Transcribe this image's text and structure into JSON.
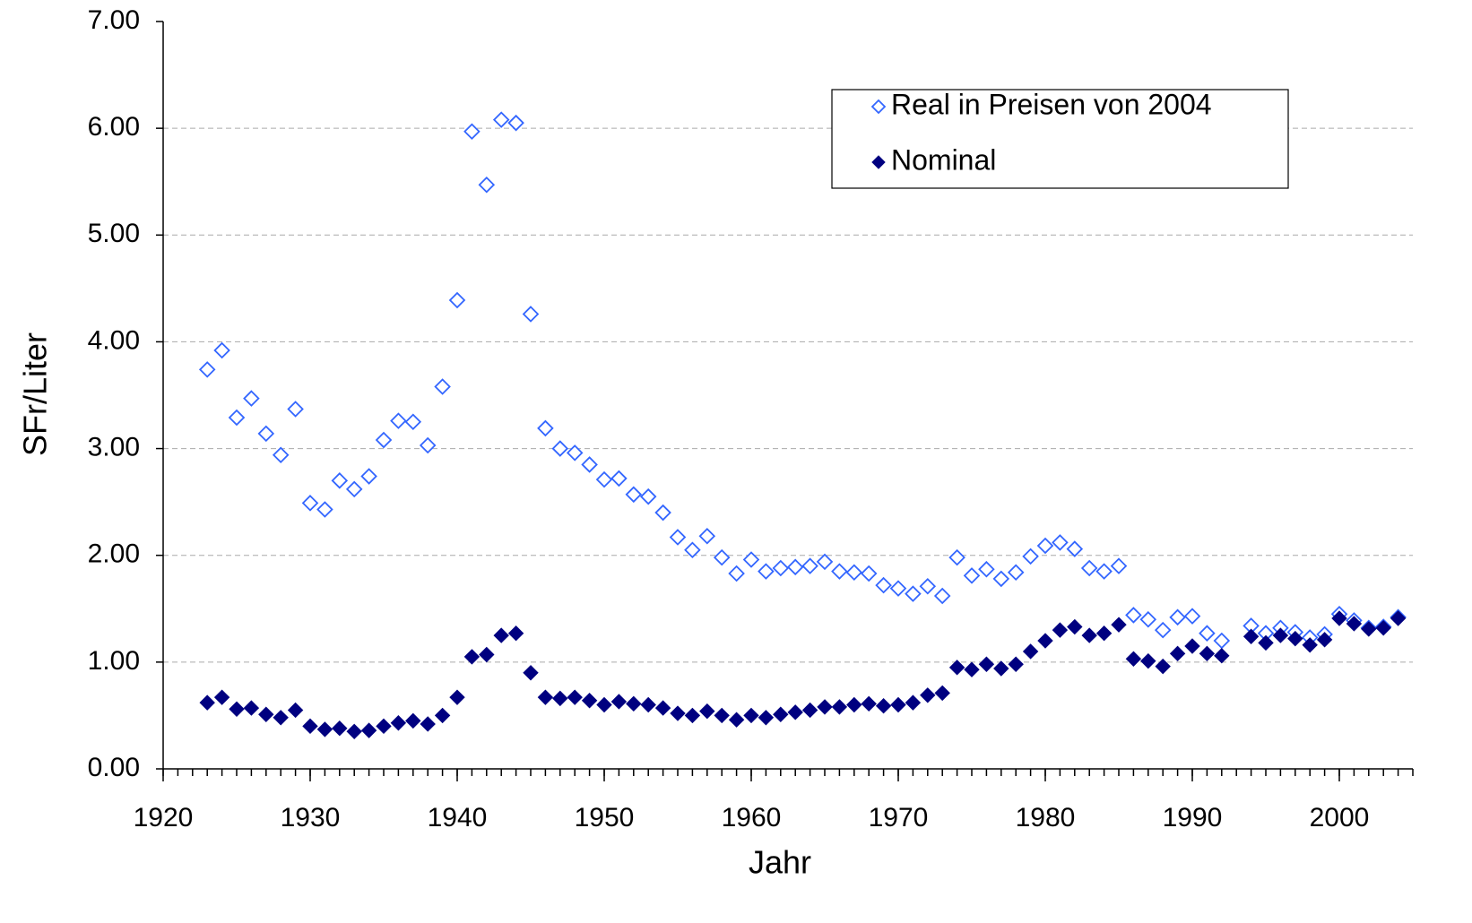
{
  "chart_data": {
    "type": "scatter",
    "x_label": "Jahr",
    "y_label": "SFr/Liter",
    "x": [
      1923,
      1924,
      1925,
      1926,
      1927,
      1928,
      1929,
      1930,
      1931,
      1932,
      1933,
      1934,
      1935,
      1936,
      1937,
      1938,
      1939,
      1940,
      1941,
      1942,
      1943,
      1944,
      1945,
      1946,
      1947,
      1948,
      1949,
      1950,
      1951,
      1952,
      1953,
      1954,
      1955,
      1956,
      1957,
      1958,
      1959,
      1960,
      1961,
      1962,
      1963,
      1964,
      1965,
      1966,
      1967,
      1968,
      1969,
      1970,
      1971,
      1972,
      1973,
      1974,
      1975,
      1976,
      1977,
      1978,
      1979,
      1980,
      1981,
      1982,
      1983,
      1984,
      1985,
      1986,
      1987,
      1988,
      1989,
      1990,
      1991,
      1992,
      1994,
      1995,
      1996,
      1997,
      1998,
      1999,
      2000,
      2001,
      2002,
      2003,
      2004
    ],
    "series": [
      {
        "name": "Real in Preisen von 2004",
        "color": "#3366ff",
        "marker": "hollow-diamond",
        "values": [
          3.74,
          3.92,
          3.29,
          3.47,
          3.14,
          2.94,
          3.37,
          2.49,
          2.43,
          2.7,
          2.62,
          2.74,
          3.08,
          3.26,
          3.25,
          3.03,
          3.58,
          4.39,
          5.97,
          5.47,
          6.08,
          6.05,
          4.26,
          3.19,
          3.0,
          2.96,
          2.85,
          2.71,
          2.72,
          2.57,
          2.55,
          2.4,
          2.17,
          2.05,
          2.18,
          1.98,
          1.83,
          1.96,
          1.85,
          1.88,
          1.89,
          1.9,
          1.94,
          1.85,
          1.84,
          1.83,
          1.72,
          1.69,
          1.64,
          1.71,
          1.62,
          1.98,
          1.81,
          1.87,
          1.78,
          1.84,
          1.99,
          2.09,
          2.12,
          2.06,
          1.88,
          1.85,
          1.9,
          1.44,
          1.4,
          1.3,
          1.42,
          1.43,
          1.27,
          1.2,
          1.34,
          1.27,
          1.32,
          1.28,
          1.23,
          1.26,
          1.45,
          1.39,
          1.32,
          1.33,
          1.42
        ]
      },
      {
        "name": "Nominal",
        "color": "#000080",
        "marker": "filled-diamond",
        "values": [
          0.62,
          0.67,
          0.56,
          0.57,
          0.51,
          0.48,
          0.55,
          0.4,
          0.37,
          0.38,
          0.35,
          0.36,
          0.4,
          0.43,
          0.45,
          0.42,
          0.5,
          0.67,
          1.05,
          1.07,
          1.25,
          1.27,
          0.9,
          0.67,
          0.66,
          0.67,
          0.64,
          0.6,
          0.63,
          0.61,
          0.6,
          0.57,
          0.52,
          0.5,
          0.54,
          0.5,
          0.46,
          0.5,
          0.48,
          0.51,
          0.53,
          0.55,
          0.58,
          0.58,
          0.6,
          0.61,
          0.59,
          0.6,
          0.62,
          0.69,
          0.71,
          0.95,
          0.93,
          0.98,
          0.94,
          0.98,
          1.1,
          1.2,
          1.3,
          1.33,
          1.25,
          1.27,
          1.35,
          1.03,
          1.01,
          0.96,
          1.08,
          1.15,
          1.08,
          1.06,
          1.24,
          1.18,
          1.25,
          1.22,
          1.16,
          1.21,
          1.41,
          1.36,
          1.31,
          1.32,
          1.41
        ]
      }
    ],
    "xlim": [
      1920,
      2005
    ],
    "xticks": [
      1920,
      1930,
      1940,
      1950,
      1960,
      1970,
      1980,
      1990,
      2000
    ],
    "ylim": [
      0,
      7
    ],
    "yticks": [
      {
        "value": 0,
        "label": "0.00"
      },
      {
        "value": 1,
        "label": "1.00"
      },
      {
        "value": 2,
        "label": "2.00"
      },
      {
        "value": 3,
        "label": "3.00"
      },
      {
        "value": 4,
        "label": "4.00"
      },
      {
        "value": 5,
        "label": "5.00"
      },
      {
        "value": 6,
        "label": "6.00"
      },
      {
        "value": 7,
        "label": "7.00"
      }
    ],
    "grid": true,
    "legend": "upper right"
  }
}
